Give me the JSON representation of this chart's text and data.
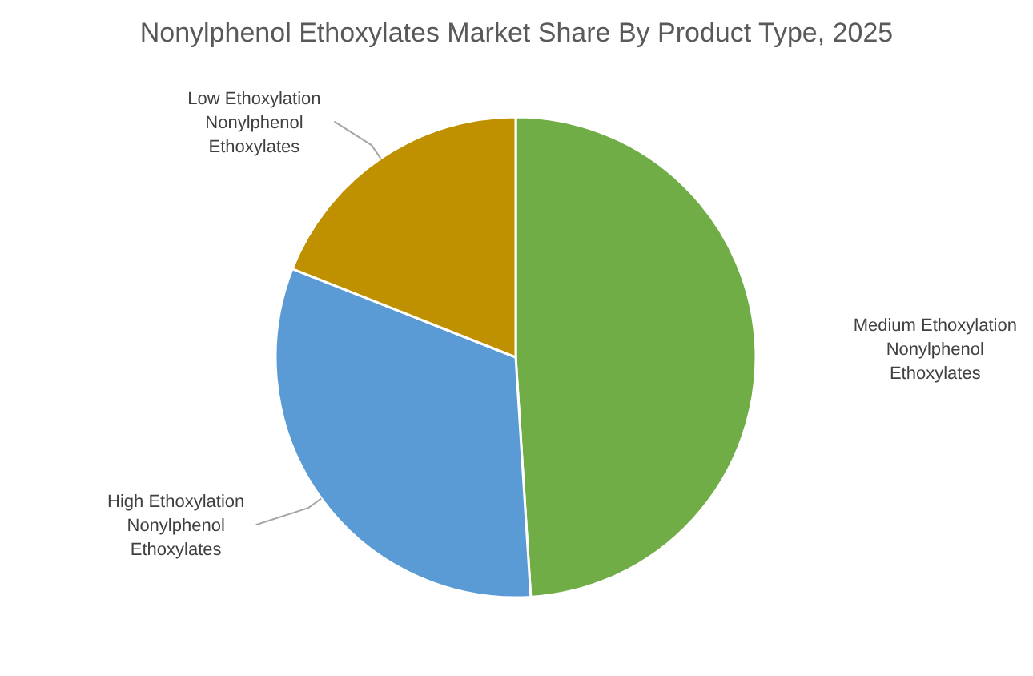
{
  "chart_data": {
    "type": "pie",
    "title": "Nonylphenol Ethoxylates Market Share By Product Type, 2025",
    "categories": [
      "Medium Ethoxylation Nonylphenol Ethoxylates",
      "High Ethoxylation Nonylphenol Ethoxylates",
      "Low Ethoxylation Nonylphenol Ethoxylates"
    ],
    "values": [
      49,
      32,
      19
    ],
    "colors": [
      "#70ad47",
      "#5b9bd5",
      "#bf9000"
    ],
    "legend": false
  }
}
